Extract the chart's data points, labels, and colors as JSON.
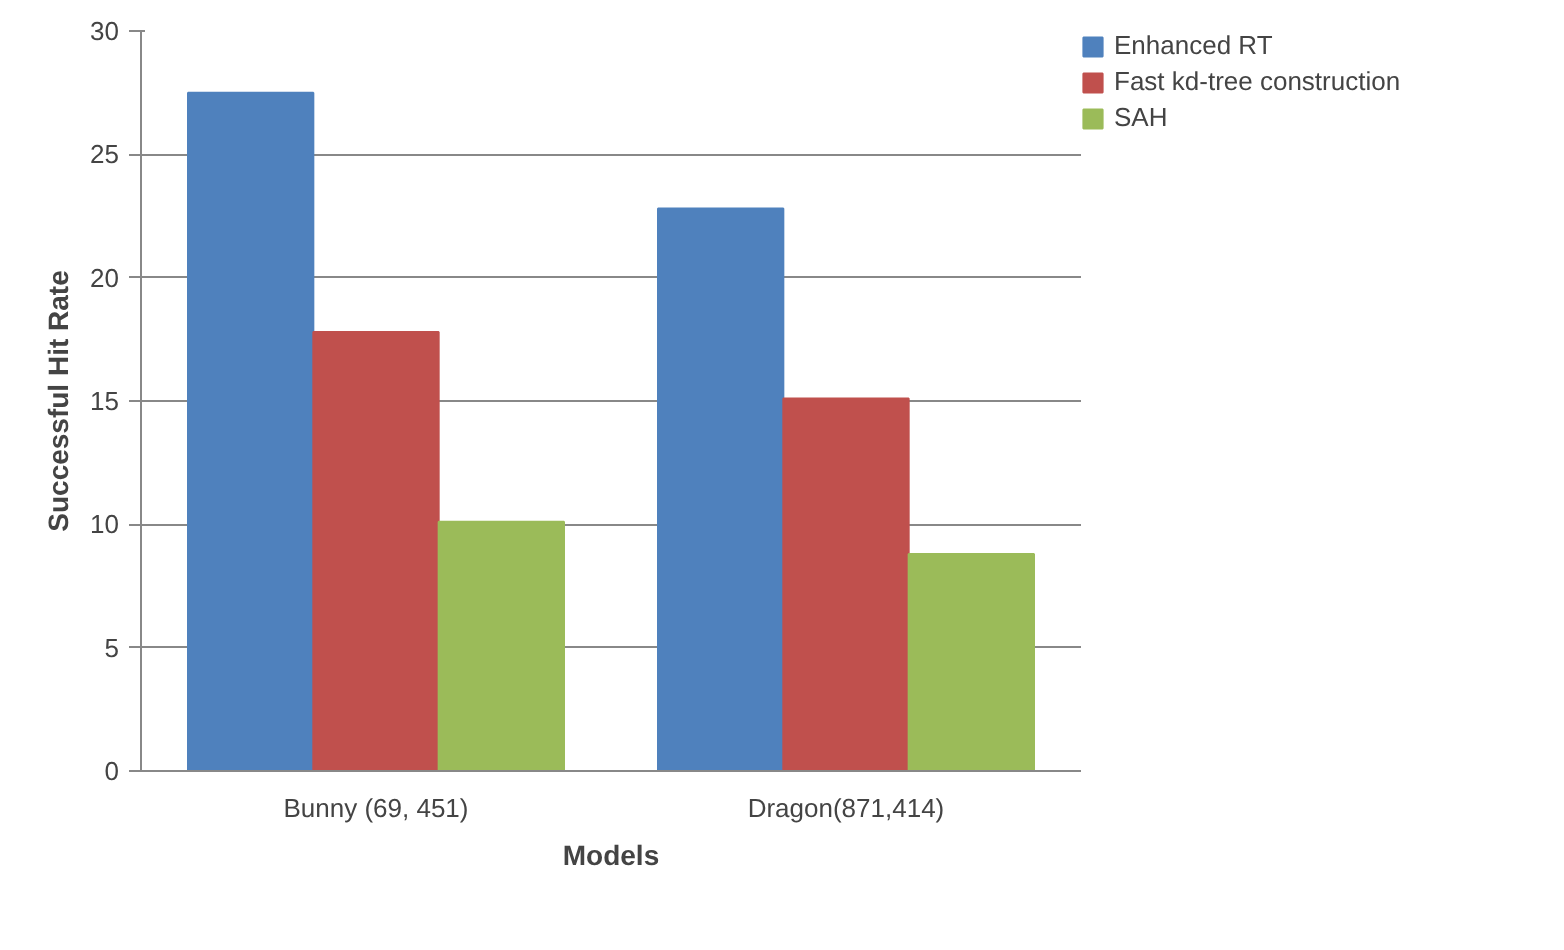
{
  "chart_data": {
    "type": "bar",
    "xlabel": "Models",
    "ylabel": "Successful Hit Rate",
    "categories": [
      "Bunny (69, 451)",
      "Dragon(871,414)"
    ],
    "series": [
      {
        "name": "Enhanced RT",
        "color": "#4f81bd",
        "values": [
          27.5,
          22.8
        ]
      },
      {
        "name": "Fast kd-tree construction",
        "color": "#c0504d",
        "values": [
          17.8,
          15.1
        ]
      },
      {
        "name": "SAH",
        "color": "#9bbb59",
        "values": [
          10.1,
          8.8
        ]
      }
    ],
    "ylim": [
      0,
      30
    ],
    "yticks": [
      0,
      5,
      10,
      15,
      20,
      25,
      30
    ],
    "grid": "y",
    "legend": "right"
  }
}
